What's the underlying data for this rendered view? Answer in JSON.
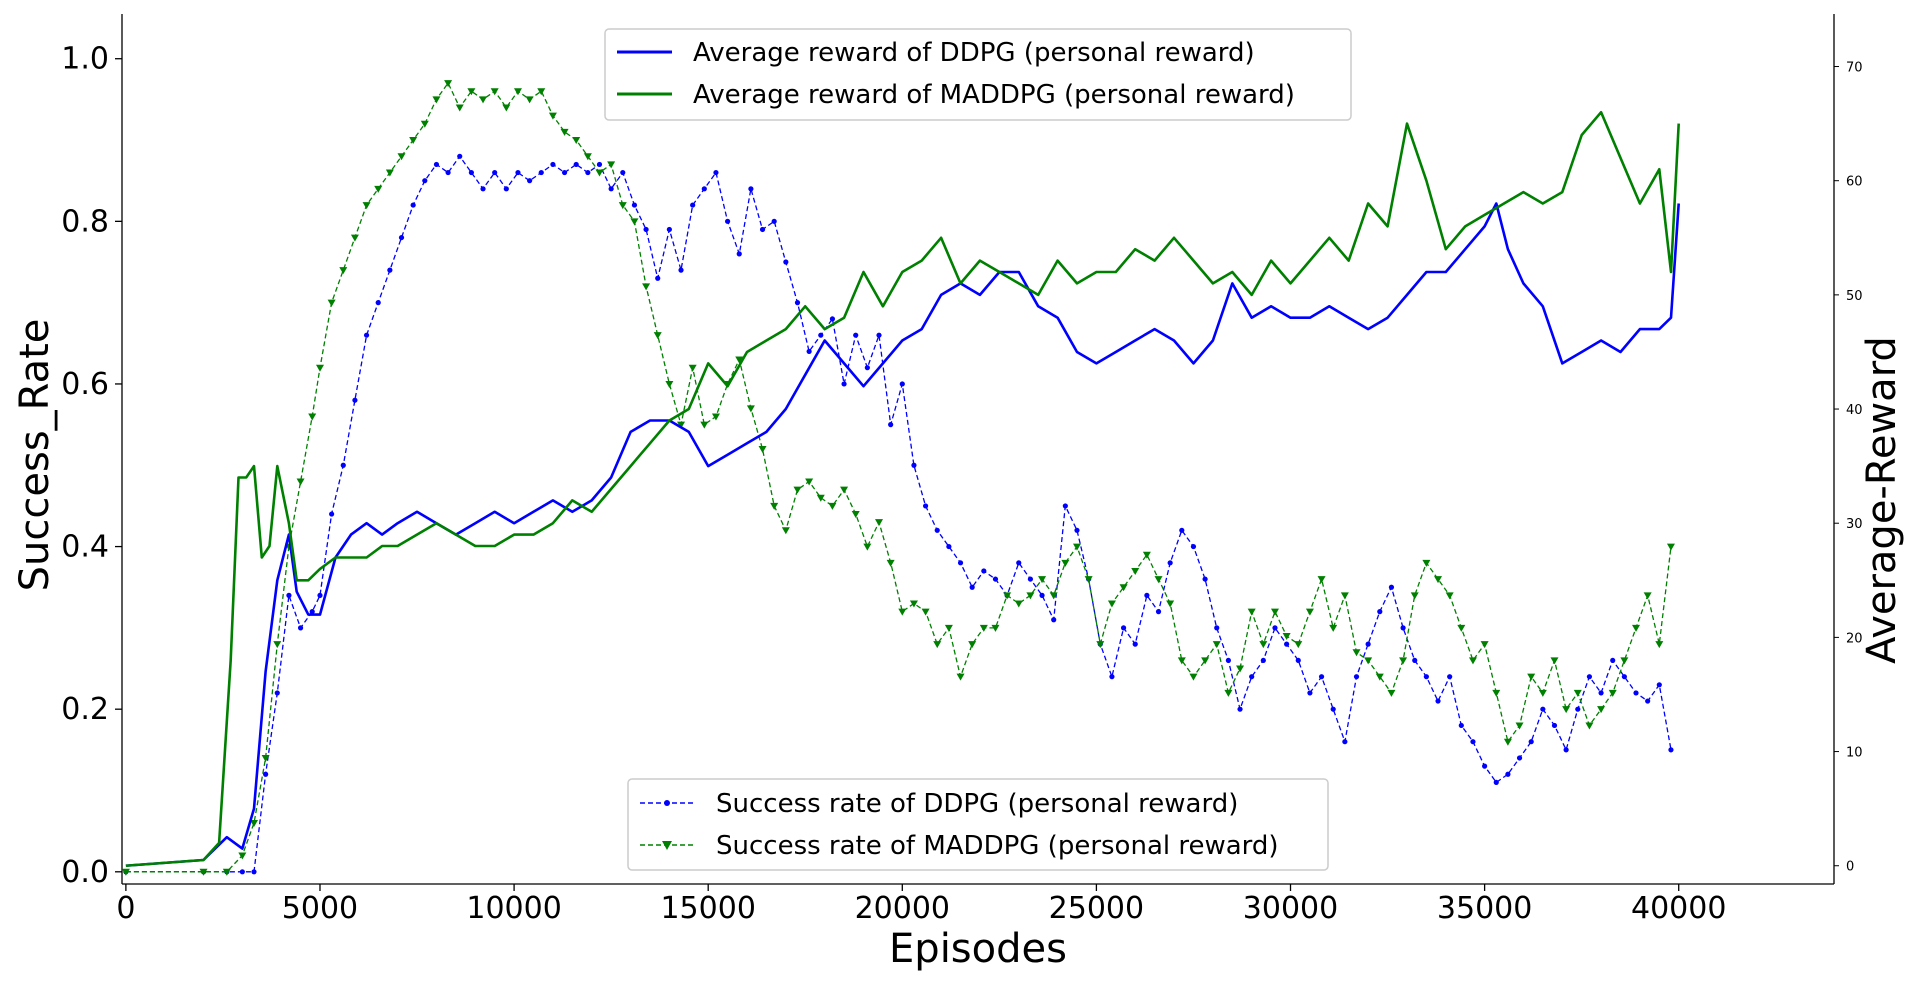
{
  "chart_data": {
    "type": "line",
    "xlabel": "Episodes",
    "ylabel": "Success_Rate",
    "y2label": "Average-Reward",
    "xlim": [
      -100,
      44000
    ],
    "ylim": [
      -0.015,
      1.055
    ],
    "y2lim": [
      -1.6,
      74.6
    ],
    "x_ticks": [
      0,
      5000,
      10000,
      15000,
      20000,
      25000,
      30000,
      35000,
      40000
    ],
    "y_ticks": [
      0.0,
      0.2,
      0.4,
      0.6,
      0.8,
      1.0
    ],
    "y2_ticks": [
      0,
      10,
      20,
      30,
      40,
      50,
      60,
      70
    ],
    "grid": false,
    "legend_top": {
      "placement": "top-center",
      "entries": [
        "Average reward of DDPG (personal reward)",
        "Average reward of MADDPG (personal reward)"
      ]
    },
    "legend_bottom": {
      "placement": "bottom-center",
      "entries": [
        "Success rate of DDPG (personal reward)",
        "Success rate of MADDPG (personal reward)"
      ]
    },
    "colors": {
      "ddpg": "#0000ff",
      "maddpg": "#008000"
    },
    "reward_series": [
      {
        "name": "Average reward of DDPG (personal reward)",
        "axis": "right",
        "color": "#0000ff",
        "x": [
          0,
          2000,
          2600,
          3000,
          3300,
          3600,
          3900,
          4200,
          4400,
          4700,
          5000,
          5400,
          5800,
          6200,
          6600,
          7000,
          7500,
          8000,
          8500,
          9000,
          9500,
          10000,
          10500,
          11000,
          11500,
          12000,
          12500,
          13000,
          13500,
          14000,
          14500,
          15000,
          15500,
          16000,
          16500,
          17000,
          17500,
          18000,
          18500,
          19000,
          19500,
          20000,
          20500,
          21000,
          21500,
          22000,
          22500,
          23000,
          23500,
          24000,
          24500,
          25000,
          25500,
          26000,
          26500,
          27000,
          27500,
          28000,
          28500,
          29000,
          29500,
          30000,
          30500,
          31000,
          31500,
          32000,
          32500,
          33000,
          33500,
          34000,
          34500,
          35000,
          35300,
          35600,
          36000,
          36500,
          37000,
          37500,
          38000,
          38500,
          39000,
          39500,
          39800,
          40000
        ],
        "values": [
          0,
          0.5,
          2.5,
          1.5,
          5,
          17,
          25,
          29,
          24,
          22,
          22,
          27,
          29,
          30,
          29,
          30,
          31,
          30,
          29,
          30,
          31,
          30,
          31,
          32,
          31,
          32,
          34,
          38,
          39,
          39,
          38,
          35,
          36,
          37,
          38,
          40,
          43,
          46,
          44,
          42,
          44,
          46,
          47,
          50,
          51,
          50,
          52,
          52,
          49,
          48,
          45,
          44,
          45,
          46,
          47,
          46,
          44,
          46,
          51,
          48,
          49,
          48,
          48,
          49,
          48,
          47,
          48,
          50,
          52,
          52,
          54,
          56,
          58,
          54,
          51,
          49,
          44,
          45,
          46,
          45,
          47,
          47,
          48,
          58
        ]
      },
      {
        "name": "Average reward of MADDPG (personal reward)",
        "axis": "right",
        "color": "#008000",
        "x": [
          0,
          2000,
          2400,
          2700,
          2900,
          3100,
          3300,
          3500,
          3700,
          3900,
          4200,
          4400,
          4700,
          5000,
          5400,
          5800,
          6200,
          6600,
          7000,
          7500,
          8000,
          8500,
          9000,
          9500,
          10000,
          10500,
          11000,
          11500,
          12000,
          12500,
          13000,
          13500,
          14000,
          14500,
          15000,
          15500,
          16000,
          16500,
          17000,
          17500,
          18000,
          18500,
          19000,
          19500,
          20000,
          20500,
          21000,
          21500,
          22000,
          22500,
          23000,
          23500,
          24000,
          24500,
          25000,
          25500,
          26000,
          26500,
          27000,
          27500,
          28000,
          28500,
          29000,
          29500,
          30000,
          30500,
          31000,
          31500,
          32000,
          32500,
          33000,
          33500,
          34000,
          34500,
          35000,
          35500,
          36000,
          36500,
          37000,
          37500,
          38000,
          38500,
          39000,
          39500,
          39800,
          40000
        ],
        "values": [
          0,
          0.5,
          2,
          18,
          34,
          34,
          35,
          27,
          28,
          35,
          30,
          25,
          25,
          26,
          27,
          27,
          27,
          28,
          28,
          29,
          30,
          29,
          28,
          28,
          29,
          29,
          30,
          32,
          31,
          33,
          35,
          37,
          39,
          40,
          44,
          42,
          45,
          46,
          47,
          49,
          47,
          48,
          52,
          49,
          52,
          53,
          55,
          51,
          53,
          52,
          51,
          50,
          53,
          51,
          52,
          52,
          54,
          53,
          55,
          53,
          51,
          52,
          50,
          53,
          51,
          53,
          55,
          53,
          58,
          56,
          65,
          60,
          54,
          56,
          57,
          58,
          59,
          58,
          59,
          64,
          66,
          62,
          58,
          61,
          52,
          65
        ]
      }
    ],
    "success_series": [
      {
        "name": "Success rate of DDPG (personal reward)",
        "axis": "left",
        "color": "#0000ff",
        "marker": "circle",
        "x": [
          0,
          2000,
          2600,
          3000,
          3300,
          3600,
          3900,
          4200,
          4500,
          4800,
          5000,
          5300,
          5600,
          5900,
          6200,
          6500,
          6800,
          7100,
          7400,
          7700,
          8000,
          8300,
          8600,
          8900,
          9200,
          9500,
          9800,
          10100,
          10400,
          10700,
          11000,
          11300,
          11600,
          11900,
          12200,
          12500,
          12800,
          13100,
          13400,
          13700,
          14000,
          14300,
          14600,
          14900,
          15200,
          15500,
          15800,
          16100,
          16400,
          16700,
          17000,
          17300,
          17600,
          17900,
          18200,
          18500,
          18800,
          19100,
          19400,
          19700,
          20000,
          20300,
          20600,
          20900,
          21200,
          21500,
          21800,
          22100,
          22400,
          22700,
          23000,
          23300,
          23600,
          23900,
          24200,
          24500,
          24800,
          25100,
          25400,
          25700,
          26000,
          26300,
          26600,
          26900,
          27200,
          27500,
          27800,
          28100,
          28400,
          28700,
          29000,
          29300,
          29600,
          29900,
          30200,
          30500,
          30800,
          31100,
          31400,
          31700,
          32000,
          32300,
          32600,
          32900,
          33200,
          33500,
          33800,
          34100,
          34400,
          34700,
          35000,
          35300,
          35600,
          35900,
          36200,
          36500,
          36800,
          37100,
          37400,
          37700,
          38000,
          38300,
          38600,
          38900,
          39200,
          39500,
          39800
        ],
        "values": [
          0,
          0,
          0,
          0,
          0,
          0.12,
          0.22,
          0.34,
          0.3,
          0.32,
          0.34,
          0.44,
          0.5,
          0.58,
          0.66,
          0.7,
          0.74,
          0.78,
          0.82,
          0.85,
          0.87,
          0.86,
          0.88,
          0.86,
          0.84,
          0.86,
          0.84,
          0.86,
          0.85,
          0.86,
          0.87,
          0.86,
          0.87,
          0.86,
          0.87,
          0.84,
          0.86,
          0.82,
          0.79,
          0.73,
          0.79,
          0.74,
          0.82,
          0.84,
          0.86,
          0.8,
          0.76,
          0.84,
          0.79,
          0.8,
          0.75,
          0.7,
          0.64,
          0.66,
          0.68,
          0.6,
          0.66,
          0.62,
          0.66,
          0.55,
          0.6,
          0.5,
          0.45,
          0.42,
          0.4,
          0.38,
          0.35,
          0.37,
          0.36,
          0.34,
          0.38,
          0.36,
          0.34,
          0.31,
          0.45,
          0.42,
          0.36,
          0.28,
          0.24,
          0.3,
          0.28,
          0.34,
          0.32,
          0.38,
          0.42,
          0.4,
          0.36,
          0.3,
          0.26,
          0.2,
          0.24,
          0.26,
          0.3,
          0.28,
          0.26,
          0.22,
          0.24,
          0.2,
          0.16,
          0.24,
          0.28,
          0.32,
          0.35,
          0.3,
          0.26,
          0.24,
          0.21,
          0.24,
          0.18,
          0.16,
          0.13,
          0.11,
          0.12,
          0.14,
          0.16,
          0.2,
          0.18,
          0.15,
          0.2,
          0.24,
          0.22,
          0.26,
          0.24,
          0.22,
          0.21,
          0.23,
          0.15
        ]
      },
      {
        "name": "Success rate of MADDPG (personal reward)",
        "axis": "left",
        "color": "#008000",
        "marker": "triangle-down",
        "x": [
          0,
          2000,
          2600,
          3000,
          3300,
          3600,
          3900,
          4200,
          4500,
          4800,
          5000,
          5300,
          5600,
          5900,
          6200,
          6500,
          6800,
          7100,
          7400,
          7700,
          8000,
          8300,
          8600,
          8900,
          9200,
          9500,
          9800,
          10100,
          10400,
          10700,
          11000,
          11300,
          11600,
          11900,
          12200,
          12500,
          12800,
          13100,
          13400,
          13700,
          14000,
          14300,
          14600,
          14900,
          15200,
          15500,
          15800,
          16100,
          16400,
          16700,
          17000,
          17300,
          17600,
          17900,
          18200,
          18500,
          18800,
          19100,
          19400,
          19700,
          20000,
          20300,
          20600,
          20900,
          21200,
          21500,
          21800,
          22100,
          22400,
          22700,
          23000,
          23300,
          23600,
          23900,
          24200,
          24500,
          24800,
          25100,
          25400,
          25700,
          26000,
          26300,
          26600,
          26900,
          27200,
          27500,
          27800,
          28100,
          28400,
          28700,
          29000,
          29300,
          29600,
          29900,
          30200,
          30500,
          30800,
          31100,
          31400,
          31700,
          32000,
          32300,
          32600,
          32900,
          33200,
          33500,
          33800,
          34100,
          34400,
          34700,
          35000,
          35300,
          35600,
          35900,
          36200,
          36500,
          36800,
          37100,
          37400,
          37700,
          38000,
          38300,
          38600,
          38900,
          39200,
          39500,
          39800
        ],
        "values": [
          0,
          0,
          0,
          0.02,
          0.06,
          0.14,
          0.28,
          0.4,
          0.48,
          0.56,
          0.62,
          0.7,
          0.74,
          0.78,
          0.82,
          0.84,
          0.86,
          0.88,
          0.9,
          0.92,
          0.95,
          0.97,
          0.94,
          0.96,
          0.95,
          0.96,
          0.94,
          0.96,
          0.95,
          0.96,
          0.93,
          0.91,
          0.9,
          0.88,
          0.86,
          0.87,
          0.82,
          0.8,
          0.72,
          0.66,
          0.6,
          0.55,
          0.62,
          0.55,
          0.56,
          0.6,
          0.63,
          0.57,
          0.52,
          0.45,
          0.42,
          0.47,
          0.48,
          0.46,
          0.45,
          0.47,
          0.44,
          0.4,
          0.43,
          0.38,
          0.32,
          0.33,
          0.32,
          0.28,
          0.3,
          0.24,
          0.28,
          0.3,
          0.3,
          0.34,
          0.33,
          0.34,
          0.36,
          0.34,
          0.38,
          0.4,
          0.36,
          0.28,
          0.33,
          0.35,
          0.37,
          0.39,
          0.36,
          0.33,
          0.26,
          0.24,
          0.26,
          0.28,
          0.22,
          0.25,
          0.32,
          0.28,
          0.32,
          0.29,
          0.28,
          0.32,
          0.36,
          0.3,
          0.34,
          0.27,
          0.26,
          0.24,
          0.22,
          0.26,
          0.34,
          0.38,
          0.36,
          0.34,
          0.3,
          0.26,
          0.28,
          0.22,
          0.16,
          0.18,
          0.24,
          0.22,
          0.26,
          0.2,
          0.22,
          0.18,
          0.2,
          0.22,
          0.26,
          0.3,
          0.34,
          0.28,
          0.4
        ]
      }
    ]
  }
}
